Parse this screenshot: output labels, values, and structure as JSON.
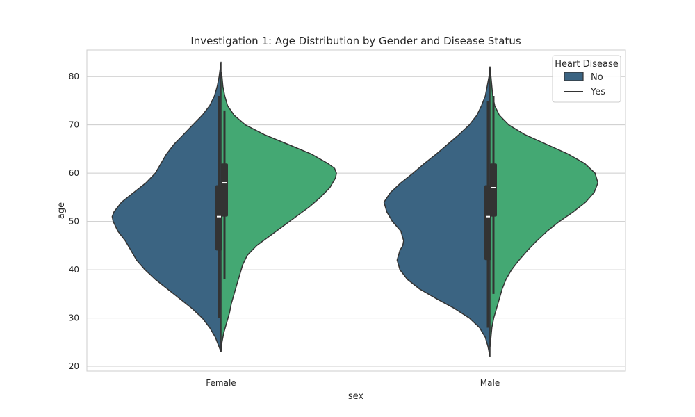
{
  "chart_data": {
    "type": "violin",
    "title": "Investigation 1: Age Distribution by Gender and Disease Status",
    "xlabel": "sex",
    "ylabel": "age",
    "categories": [
      "Female",
      "Male"
    ],
    "ylim": [
      19,
      85.5
    ],
    "yticks": [
      20,
      30,
      40,
      50,
      60,
      70,
      80
    ],
    "grid": true,
    "split": true,
    "legend": {
      "title": "Heart Disease",
      "placement": "top-right",
      "entries": [
        "No",
        "Yes"
      ]
    },
    "series": [
      {
        "name": "No",
        "color": "#3b6482",
        "side": "left",
        "violins": [
          {
            "category": "Female",
            "min": 30,
            "q1": 44,
            "median": 51,
            "q3": 57.5,
            "max": 76,
            "density": [
              [
                23,
                0.0
              ],
              [
                24,
                0.02
              ],
              [
                26,
                0.06
              ],
              [
                28,
                0.12
              ],
              [
                30,
                0.2
              ],
              [
                32,
                0.31
              ],
              [
                34,
                0.44
              ],
              [
                36,
                0.57
              ],
              [
                38,
                0.7
              ],
              [
                40,
                0.81
              ],
              [
                42,
                0.9
              ],
              [
                44,
                0.96
              ],
              [
                46,
                1.02
              ],
              [
                48,
                1.1
              ],
              [
                50,
                1.15
              ],
              [
                51,
                1.16
              ],
              [
                52,
                1.14
              ],
              [
                54,
                1.06
              ],
              [
                56,
                0.93
              ],
              [
                58,
                0.8
              ],
              [
                60,
                0.7
              ],
              [
                62,
                0.64
              ],
              [
                64,
                0.58
              ],
              [
                66,
                0.5
              ],
              [
                68,
                0.4
              ],
              [
                70,
                0.3
              ],
              [
                72,
                0.2
              ],
              [
                74,
                0.12
              ],
              [
                76,
                0.07
              ],
              [
                78,
                0.04
              ],
              [
                80,
                0.02
              ],
              [
                83,
                0.0
              ]
            ]
          },
          {
            "category": "Male",
            "min": 28,
            "q1": 42,
            "median": 51,
            "q3": 57.5,
            "max": 75,
            "density": [
              [
                22,
                0.0
              ],
              [
                24,
                0.02
              ],
              [
                26,
                0.05
              ],
              [
                28,
                0.11
              ],
              [
                30,
                0.22
              ],
              [
                32,
                0.38
              ],
              [
                34,
                0.57
              ],
              [
                36,
                0.75
              ],
              [
                38,
                0.88
              ],
              [
                40,
                0.96
              ],
              [
                42,
                0.99
              ],
              [
                44,
                0.96
              ],
              [
                45,
                0.93
              ],
              [
                46,
                0.92
              ],
              [
                48,
                0.95
              ],
              [
                50,
                1.04
              ],
              [
                52,
                1.1
              ],
              [
                54,
                1.13
              ],
              [
                56,
                1.06
              ],
              [
                58,
                0.95
              ],
              [
                60,
                0.82
              ],
              [
                62,
                0.7
              ],
              [
                64,
                0.57
              ],
              [
                66,
                0.45
              ],
              [
                68,
                0.33
              ],
              [
                70,
                0.22
              ],
              [
                72,
                0.14
              ],
              [
                74,
                0.09
              ],
              [
                76,
                0.05
              ],
              [
                78,
                0.03
              ],
              [
                80,
                0.01
              ],
              [
                82,
                0.0
              ]
            ]
          }
        ]
      },
      {
        "name": "Yes",
        "color": "#44a873",
        "side": "right",
        "violins": [
          {
            "category": "Female",
            "min": 38,
            "q1": 51,
            "median": 58,
            "q3": 62,
            "max": 73,
            "density": [
              [
                23,
                0.0
              ],
              [
                25,
                0.01
              ],
              [
                27,
                0.03
              ],
              [
                29,
                0.06
              ],
              [
                31,
                0.09
              ],
              [
                33,
                0.11
              ],
              [
                35,
                0.14
              ],
              [
                37,
                0.17
              ],
              [
                39,
                0.2
              ],
              [
                41,
                0.23
              ],
              [
                43,
                0.28
              ],
              [
                45,
                0.38
              ],
              [
                47,
                0.52
              ],
              [
                49,
                0.66
              ],
              [
                51,
                0.8
              ],
              [
                53,
                0.94
              ],
              [
                55,
                1.06
              ],
              [
                57,
                1.16
              ],
              [
                59,
                1.22
              ],
              [
                60,
                1.23
              ],
              [
                61,
                1.21
              ],
              [
                62,
                1.14
              ],
              [
                64,
                0.96
              ],
              [
                66,
                0.71
              ],
              [
                68,
                0.46
              ],
              [
                70,
                0.26
              ],
              [
                72,
                0.14
              ],
              [
                74,
                0.07
              ],
              [
                76,
                0.04
              ],
              [
                78,
                0.02
              ],
              [
                80,
                0.01
              ],
              [
                81,
                0.0
              ]
            ]
          },
          {
            "category": "Male",
            "min": 35,
            "q1": 51,
            "median": 57,
            "q3": 62,
            "max": 76,
            "density": [
              [
                24,
                0.0
              ],
              [
                26,
                0.01
              ],
              [
                28,
                0.02
              ],
              [
                30,
                0.04
              ],
              [
                32,
                0.07
              ],
              [
                34,
                0.1
              ],
              [
                36,
                0.13
              ],
              [
                38,
                0.17
              ],
              [
                40,
                0.23
              ],
              [
                42,
                0.31
              ],
              [
                44,
                0.4
              ],
              [
                46,
                0.5
              ],
              [
                48,
                0.61
              ],
              [
                50,
                0.74
              ],
              [
                52,
                0.89
              ],
              [
                54,
                1.02
              ],
              [
                56,
                1.11
              ],
              [
                58,
                1.15
              ],
              [
                60,
                1.12
              ],
              [
                62,
                1.01
              ],
              [
                64,
                0.83
              ],
              [
                66,
                0.6
              ],
              [
                68,
                0.37
              ],
              [
                70,
                0.2
              ],
              [
                72,
                0.1
              ],
              [
                74,
                0.05
              ],
              [
                76,
                0.03
              ],
              [
                78,
                0.02
              ],
              [
                80,
                0.01
              ],
              [
                82,
                0.0
              ]
            ]
          }
        ]
      }
    ]
  }
}
